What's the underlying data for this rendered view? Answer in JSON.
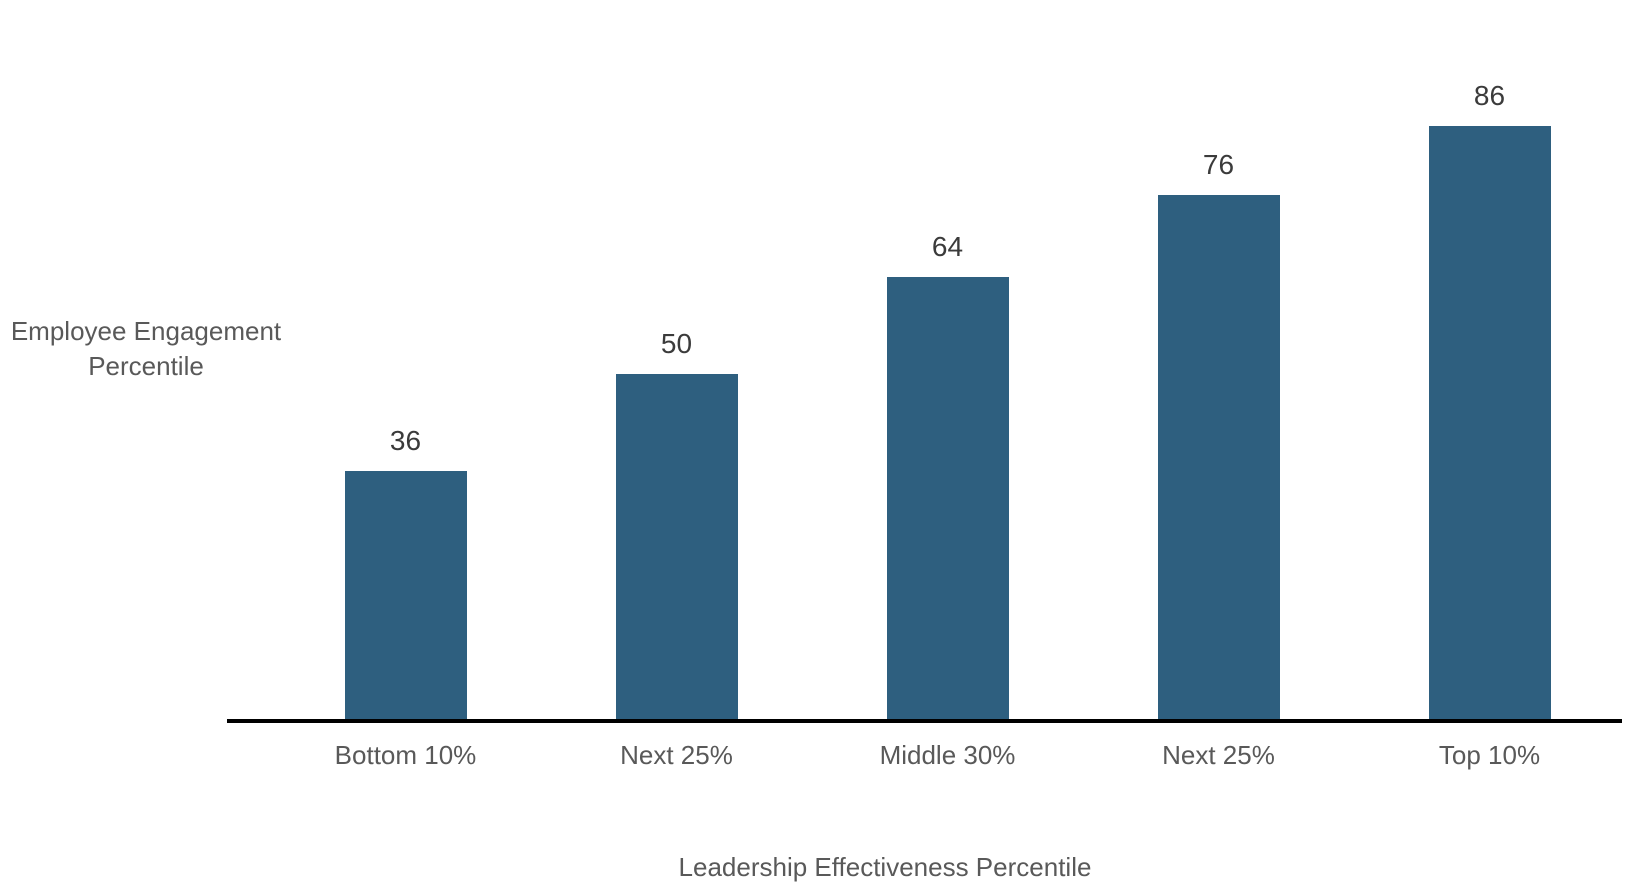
{
  "chart_data": {
    "type": "bar",
    "categories": [
      "Bottom 10%",
      "Next 25%",
      "Middle 30%",
      "Next 25%",
      "Top 10%"
    ],
    "values": [
      36,
      50,
      64,
      76,
      86
    ],
    "title": "",
    "xlabel": "Leadership Effectiveness Percentile",
    "ylabel": "Employee Engagement Percentile",
    "ylabel_lines": [
      "Employee Engagement",
      "Percentile"
    ],
    "ylim": [
      0,
      104
    ],
    "grid": false,
    "legend": false,
    "data_labels_shown": true,
    "colors": {
      "bar": "#2E5F7F",
      "data_label": "#3B3B3B",
      "axis_text": "#595959",
      "axis_line": "#000000",
      "background": "#FFFFFF"
    }
  }
}
